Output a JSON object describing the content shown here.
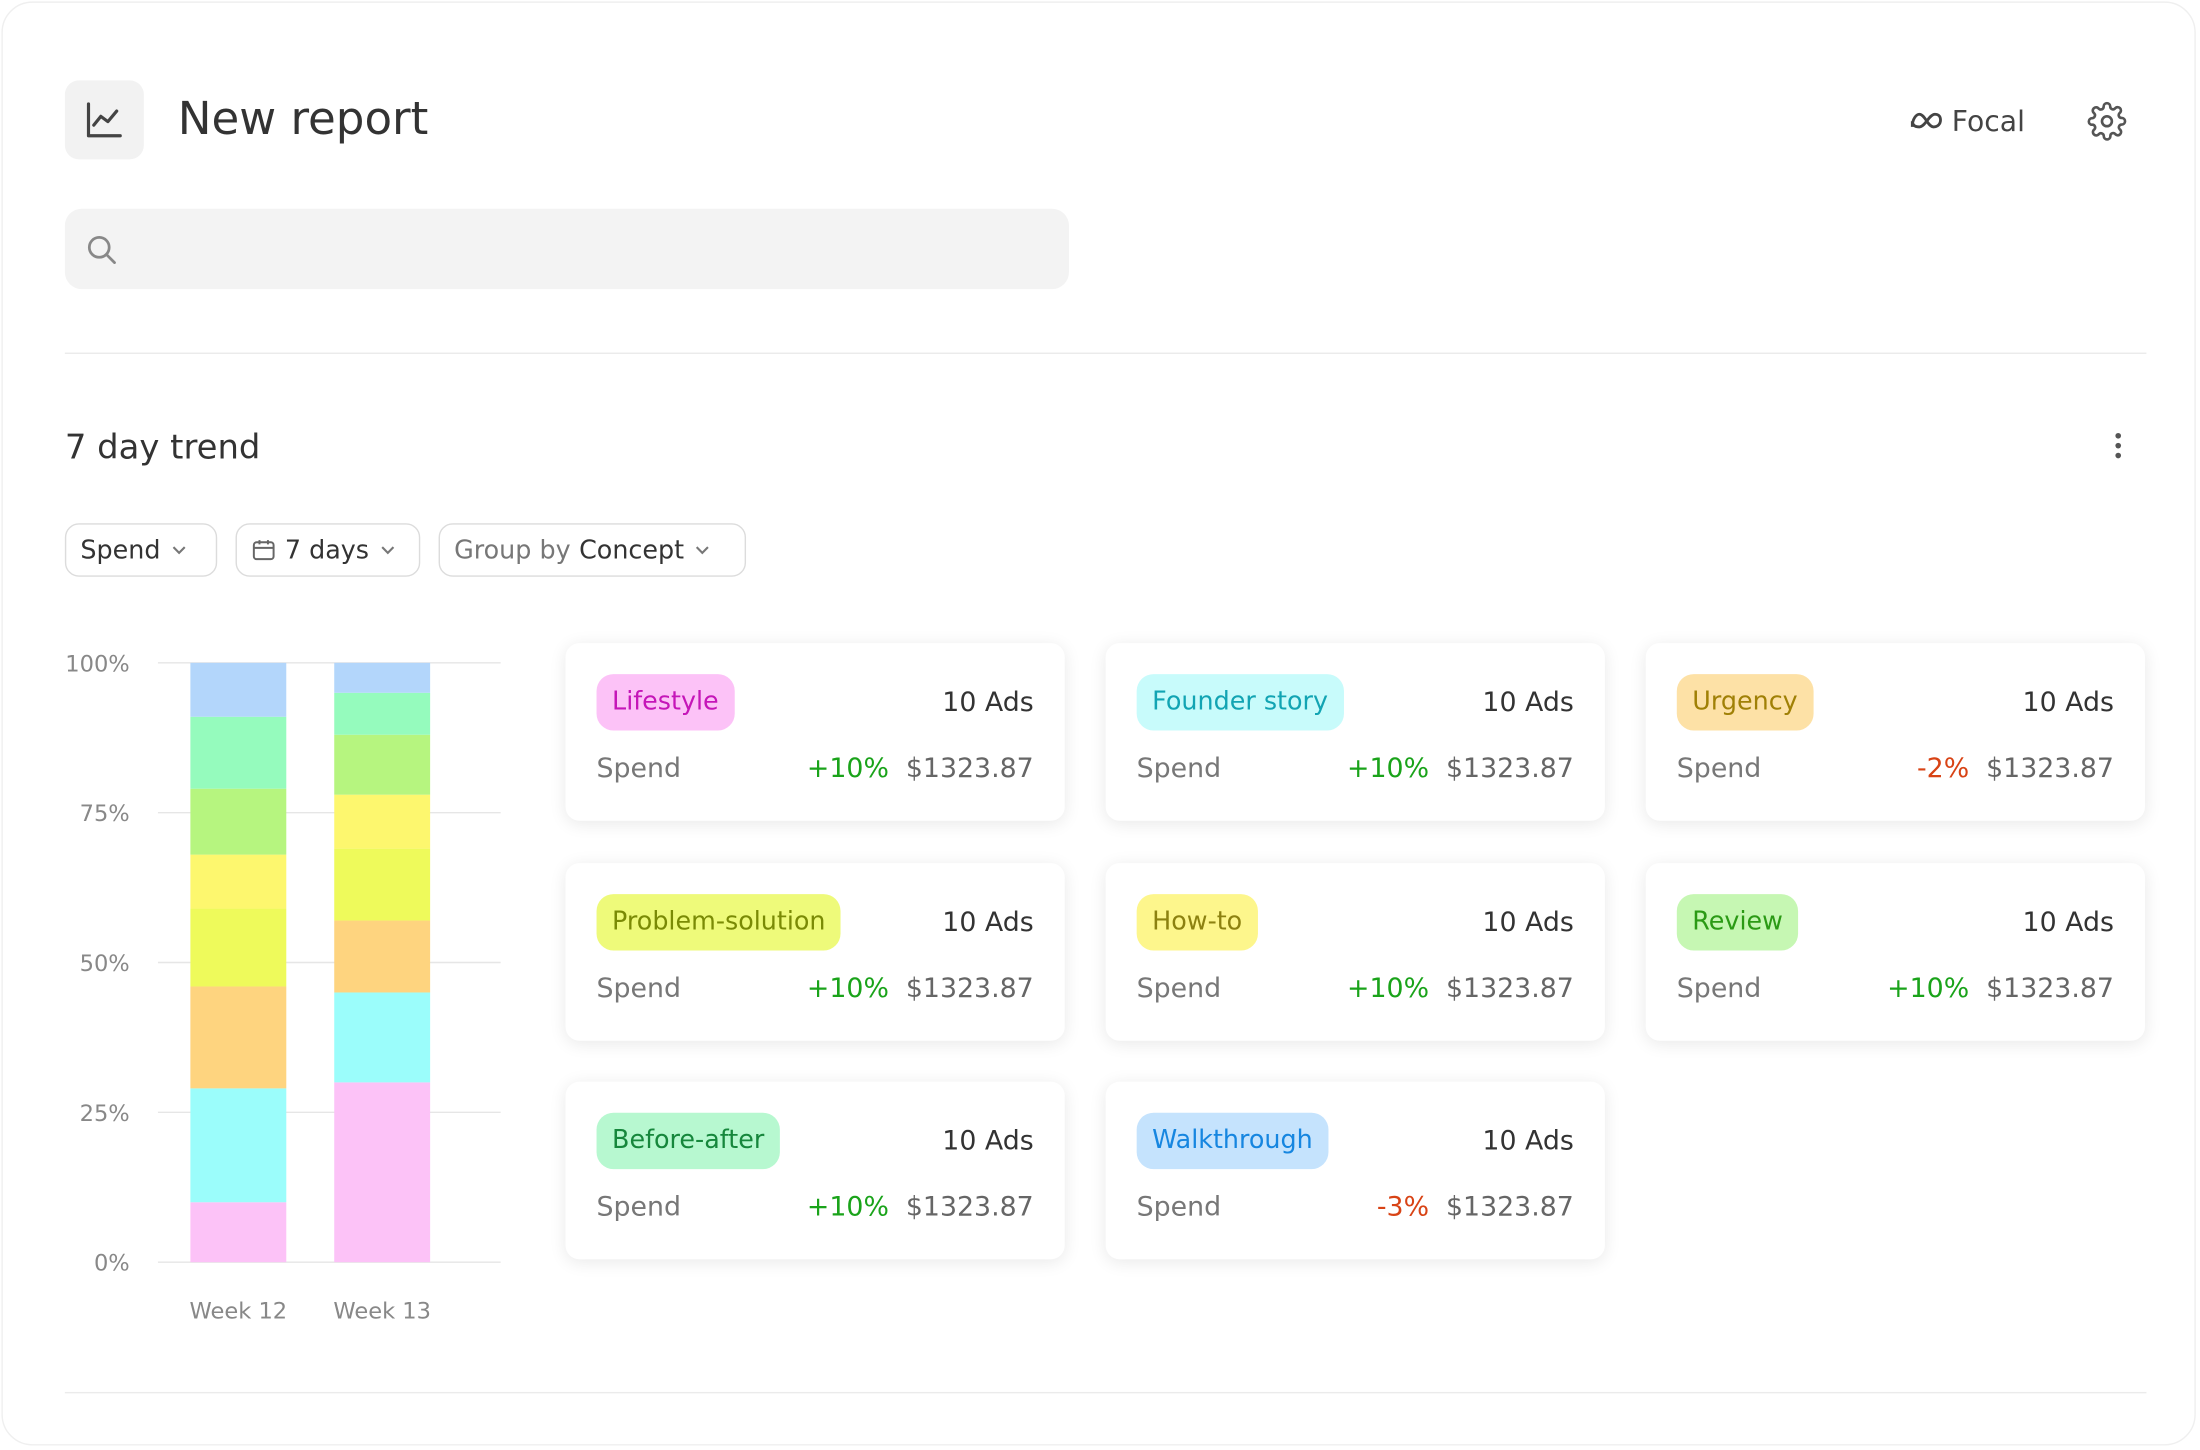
{
  "header": {
    "title": "New report",
    "brand": "Focal"
  },
  "section": {
    "title": "7 day trend",
    "filters": {
      "metric": "Spend",
      "range": "7 days",
      "group_prefix": "Group by",
      "group_value": "Concept"
    }
  },
  "chart_data": {
    "type": "stacked_bar",
    "categories": [
      "Week 12",
      "Week 13"
    ],
    "series": [
      {
        "color": "#fcc2f7",
        "values": [
          10,
          30
        ]
      },
      {
        "color": "#9bfdfb",
        "values": [
          19,
          15
        ]
      },
      {
        "color": "#fed47f",
        "values": [
          17,
          12
        ]
      },
      {
        "color": "#eefa5b",
        "values": [
          13,
          12
        ]
      },
      {
        "color": "#fdf76e",
        "values": [
          9,
          9
        ]
      },
      {
        "color": "#b6f57f",
        "values": [
          11,
          10
        ]
      },
      {
        "color": "#95fbbd",
        "values": [
          12,
          7
        ]
      },
      {
        "color": "#b3d6fb",
        "values": [
          9,
          5
        ]
      }
    ],
    "ylim": [
      0,
      100
    ],
    "yticks": [
      {
        "value": 0,
        "label": "0%"
      },
      {
        "value": 25,
        "label": "25%"
      },
      {
        "value": 50,
        "label": "50%"
      },
      {
        "value": 75,
        "label": "75%"
      },
      {
        "value": 100,
        "label": "100%"
      }
    ],
    "grid": true
  },
  "cards": [
    {
      "tag": "Lifestyle",
      "tag_bg": "#fcc2f7",
      "tag_color": "#c516b8",
      "ads": "10 Ads",
      "metric": "Spend",
      "change": "+10%",
      "change_color": "#1aa31a",
      "value": "$1323.87"
    },
    {
      "tag": "Founder story",
      "tag_bg": "#c8fbfb",
      "tag_color": "#12a4b3",
      "ads": "10 Ads",
      "metric": "Spend",
      "change": "+10%",
      "change_color": "#1aa31a",
      "value": "$1323.87"
    },
    {
      "tag": "Urgency",
      "tag_bg": "#fde1a6",
      "tag_color": "#a08006",
      "ads": "10 Ads",
      "metric": "Spend",
      "change": "-2%",
      "change_color": "#d84315",
      "value": "$1323.87"
    },
    {
      "tag": "Problem-solution",
      "tag_bg": "#eefa7a",
      "tag_color": "#7a8a05",
      "ads": "10 Ads",
      "metric": "Spend",
      "change": "+10%",
      "change_color": "#1aa31a",
      "value": "$1323.87"
    },
    {
      "tag": "How-to",
      "tag_bg": "#fdf68c",
      "tag_color": "#8c8110",
      "ads": "10 Ads",
      "metric": "Spend",
      "change": "+10%",
      "change_color": "#1aa31a",
      "value": "$1323.87"
    },
    {
      "tag": "Review",
      "tag_bg": "#c6f7b3",
      "tag_color": "#2b9a15",
      "ads": "10 Ads",
      "metric": "Spend",
      "change": "+10%",
      "change_color": "#1aa31a",
      "value": "$1323.87"
    },
    {
      "tag": "Before-after",
      "tag_bg": "#b7f8d0",
      "tag_color": "#16873c",
      "ads": "10 Ads",
      "metric": "Spend",
      "change": "+10%",
      "change_color": "#1aa31a",
      "value": "$1323.87"
    },
    {
      "tag": "Walkthrough",
      "tag_bg": "#c5e3fd",
      "tag_color": "#1686e0",
      "ads": "10 Ads",
      "metric": "Spend",
      "change": "-3%",
      "change_color": "#d84315",
      "value": "$1323.87"
    }
  ]
}
